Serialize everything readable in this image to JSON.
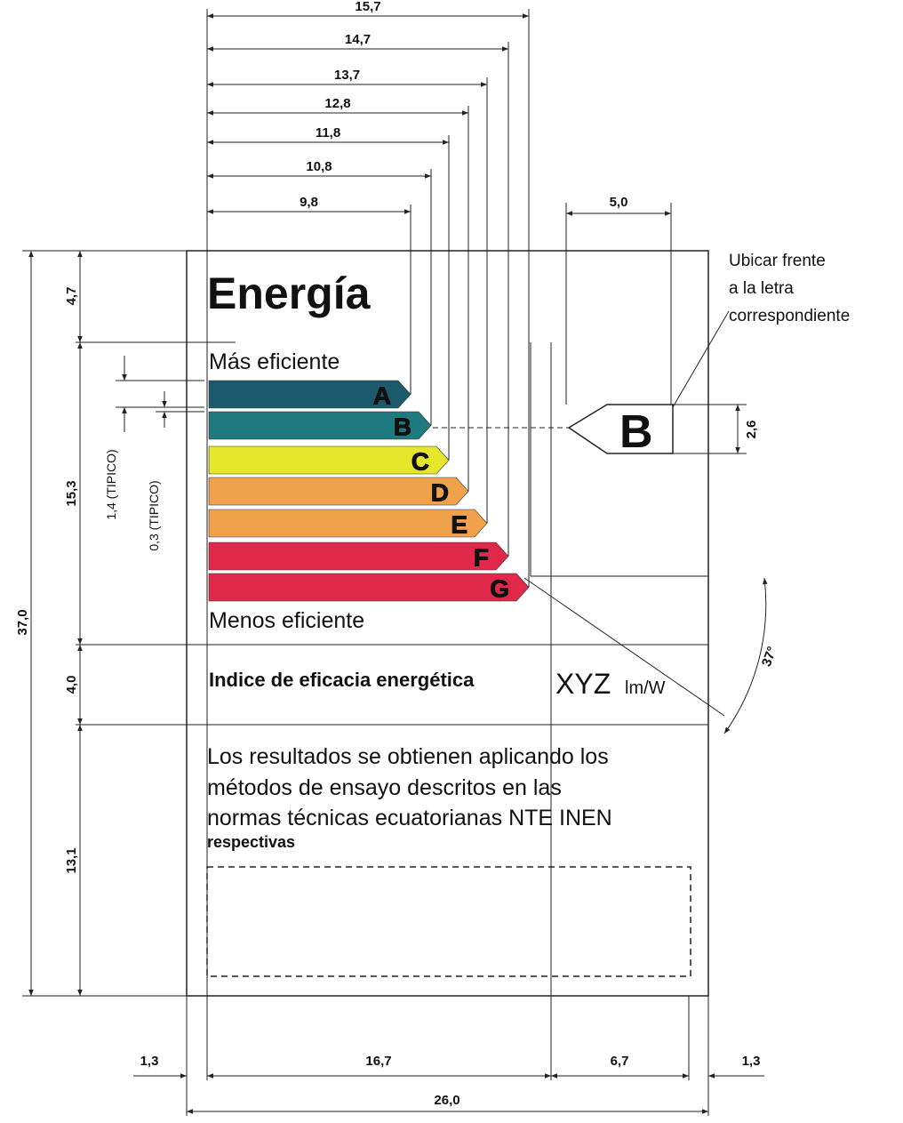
{
  "dimensions_top": [
    "15,7",
    "14,7",
    "13,7",
    "12,8",
    "11,8",
    "10,8",
    "9,8"
  ],
  "dim_letter_width": "5,0",
  "dim_letter_height": "2,6",
  "dims_left": {
    "total": "37,0",
    "header": "4,7",
    "scale": "15,3",
    "index": "4,0",
    "footer": "13,1",
    "bar_height": "1,4 (TIPICO)",
    "bar_gap": "0,3 (TIPICO)"
  },
  "dims_bottom": {
    "left_margin": "1,3",
    "main": "16,7",
    "right_col": "6,7",
    "right_margin": "1,3",
    "total": "26,0"
  },
  "angle": "37°",
  "label": {
    "title": "Energía",
    "top": "Más eficiente",
    "bottom": "Menos eficiente",
    "classes": [
      "A",
      "B",
      "C",
      "D",
      "E",
      "F",
      "G"
    ],
    "indicator": "B",
    "index_label": "Indice de eficacia energética",
    "index_value": "XYZ",
    "index_unit": "lm/W",
    "footer": [
      "Los resultados se obtienen aplicando los",
      "métodos de ensayo descritos en las",
      "normas técnicas ecuatorianas NTE INEN",
      "respectivas"
    ]
  },
  "note": [
    "Ubicar frente",
    "a la letra",
    "correspondiente"
  ]
}
